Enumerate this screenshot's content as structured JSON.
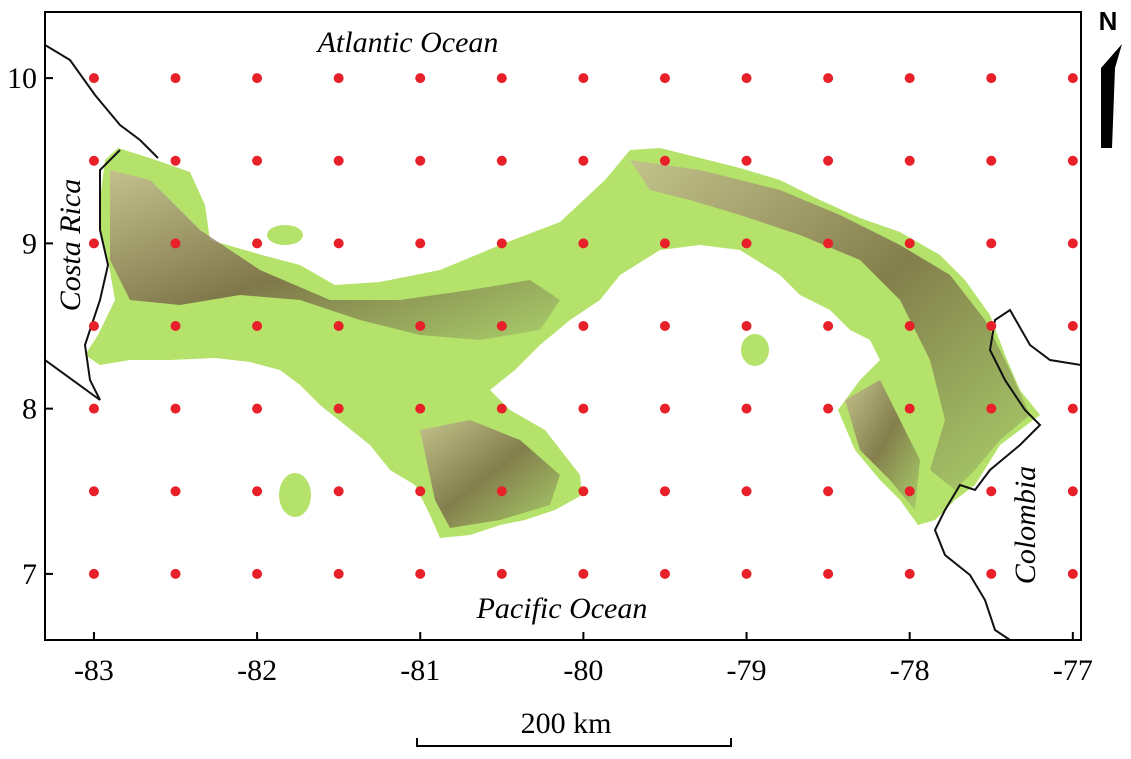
{
  "map": {
    "x_ticks": [
      "-83",
      "-82",
      "-81",
      "-80",
      "-79",
      "-78",
      "-77"
    ],
    "y_ticks": [
      "10",
      "9",
      "8",
      "7"
    ],
    "labels": {
      "atlantic": "Atlantic Ocean",
      "pacific": "Pacific Ocean",
      "costa_rica": "Costa Rica",
      "colombia": "Colombia"
    },
    "north": "N",
    "scale_bar": "200 km",
    "colors": {
      "grid_point": "#e8202a",
      "lowland": "#b5e26a",
      "relief": "#7a5a40",
      "border": "#111111"
    }
  },
  "chart_data": {
    "type": "scatter",
    "x_range": [
      -83.3,
      -76.95
    ],
    "y_range": [
      6.6,
      10.4
    ],
    "grid_points": {
      "lons": [
        -83,
        -82.5,
        -82,
        -81.5,
        -81,
        -80.5,
        -80,
        -79.5,
        -79,
        -78.5,
        -78,
        -77.5,
        -77
      ],
      "lats": [
        10,
        9.5,
        9,
        8.5,
        8,
        7.5,
        7
      ]
    }
  }
}
